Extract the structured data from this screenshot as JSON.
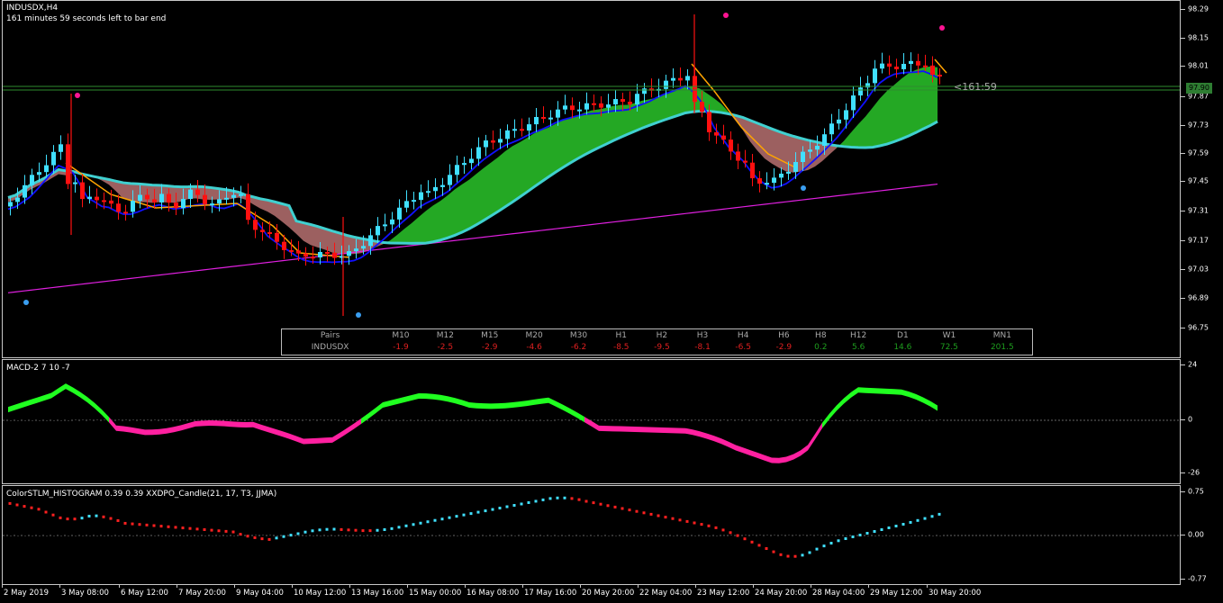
{
  "window": {
    "symbol_title": "INDUSDX,H4",
    "bar_timer": "161 minutes 59 seconds left to bar end",
    "countdown": "<161:59",
    "current_price": "97.90"
  },
  "price_scale": [
    "98.29",
    "98.15",
    "98.01",
    "97.87",
    "97.73",
    "97.59",
    "97.45",
    "97.31",
    "97.17",
    "97.03",
    "96.89",
    "96.75"
  ],
  "strength_panel": {
    "header_label": "Pairs",
    "row_label": "INDUSDX",
    "columns": [
      {
        "tf": "M10",
        "val": "-1.9",
        "color": "#e02020"
      },
      {
        "tf": "M12",
        "val": "-2.5",
        "color": "#e02020"
      },
      {
        "tf": "M15",
        "val": "-2.9",
        "color": "#e02020"
      },
      {
        "tf": "M20",
        "val": "-4.6",
        "color": "#e02020"
      },
      {
        "tf": "M30",
        "val": "-6.2",
        "color": "#e02020"
      },
      {
        "tf": "H1",
        "val": "-8.5",
        "color": "#e02020"
      },
      {
        "tf": "H2",
        "val": "-9.5",
        "color": "#e02020"
      },
      {
        "tf": "H3",
        "val": "-8.1",
        "color": "#e02020"
      },
      {
        "tf": "H4",
        "val": "-6.5",
        "color": "#e02020"
      },
      {
        "tf": "H6",
        "val": "-2.9",
        "color": "#e02020"
      },
      {
        "tf": "H8",
        "val": "0.2",
        "color": "#1e9e1e"
      },
      {
        "tf": "H12",
        "val": "5.6",
        "color": "#1e9e1e"
      },
      {
        "tf": "D1",
        "val": "14.6",
        "color": "#1e9e1e"
      },
      {
        "tf": "W1",
        "val": "72.5",
        "color": "#1e9e1e"
      },
      {
        "tf": "MN1",
        "val": "201.5",
        "color": "#1e9e1e"
      }
    ]
  },
  "macd": {
    "label": "MACD-2 7 10 -7",
    "scale": [
      "24",
      "0",
      "-26"
    ]
  },
  "stlm": {
    "label": "ColorSTLM_HISTOGRAM 0.39 0.39 XXDPO_Candle(21, 17, T3, JJMA)",
    "scale": [
      "0.75",
      "0.00",
      "-0.77"
    ]
  },
  "time_axis": [
    "2 May 2019",
    "3 May 08:00",
    "6 May 12:00",
    "7 May 20:00",
    "9 May 04:00",
    "10 May 12:00",
    "13 May 16:00",
    "15 May 00:00",
    "16 May 08:00",
    "17 May 16:00",
    "20 May 20:00",
    "22 May 04:00",
    "23 May 12:00",
    "24 May 20:00",
    "28 May 04:00",
    "29 May 12:00",
    "30 May 20:00"
  ],
  "colors": {
    "bull": "#40e0ff",
    "bear": "#ff1010",
    "ribbon_up": "#30e030",
    "ribbon_down": "#d08080",
    "ma_cyan": "#40d0d0",
    "ma_magenta": "#e020e0",
    "ma_blue": "#1010ff",
    "ma_orange": "#ffa500",
    "macd_blue": "#1010d0",
    "macd_cyan": "#20c0e0",
    "macd_brown": "#a02020",
    "macd_pink": "#f090d0",
    "signal_green": "#20ff20",
    "signal_pink": "#ff20a0"
  }
}
